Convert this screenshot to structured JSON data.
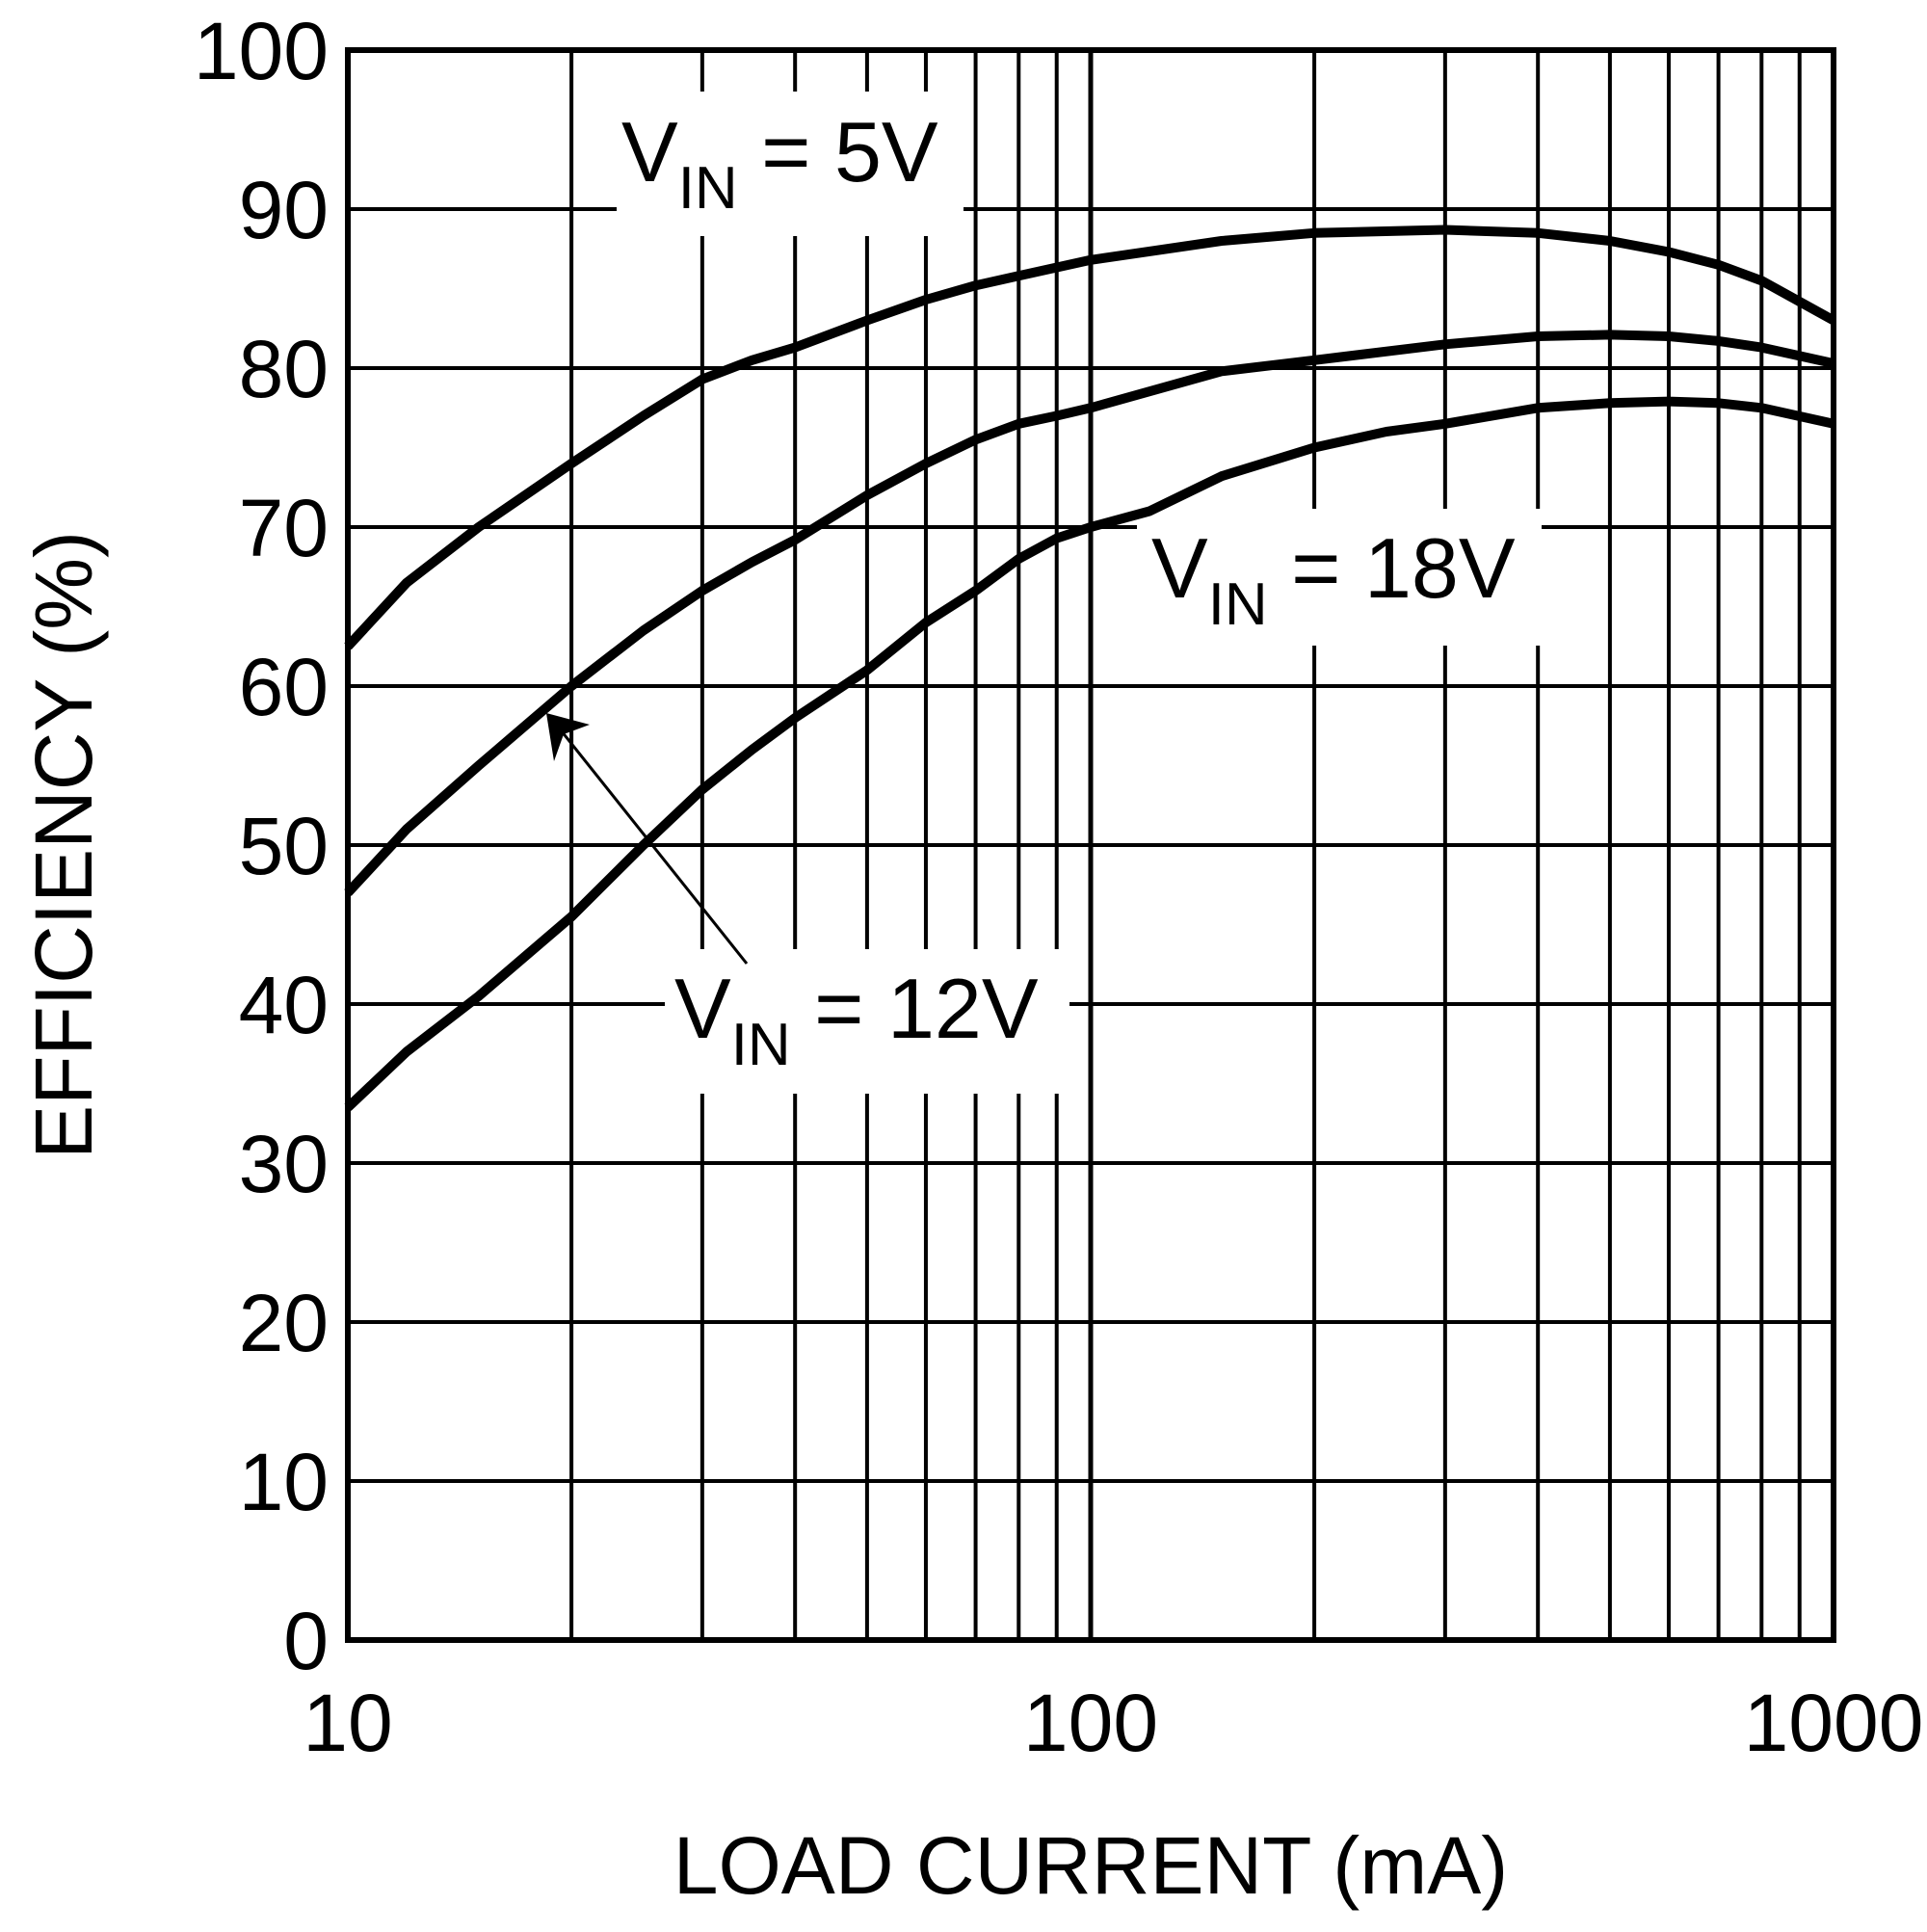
{
  "chart_data": {
    "type": "line",
    "xlabel": "LOAD CURRENT (mA)",
    "ylabel": "EFFICIENCY (%)",
    "x_scale": "log",
    "xlim": [
      10,
      1000
    ],
    "ylim": [
      0,
      100
    ],
    "grid": true,
    "x_ticks": [
      "10",
      "100",
      "1000"
    ],
    "y_ticks": [
      "0",
      "10",
      "20",
      "30",
      "40",
      "50",
      "60",
      "70",
      "80",
      "90",
      "100"
    ],
    "series": [
      {
        "name": "VIN = 5V",
        "label_main": "V",
        "label_sub": "IN",
        "label_rest": " = 5V",
        "color": "#000000",
        "x": [
          10,
          12,
          15,
          20,
          25,
          30,
          35,
          40,
          50,
          60,
          70,
          80,
          100,
          150,
          200,
          300,
          400,
          500,
          600,
          700,
          800,
          1000
        ],
        "y": [
          62.5,
          66.5,
          70,
          74,
          77,
          79.3,
          80.5,
          81.3,
          83,
          84.3,
          85.2,
          85.8,
          86.8,
          88,
          88.5,
          88.7,
          88.5,
          88,
          87.3,
          86.5,
          85.5,
          83
        ]
      },
      {
        "name": "VIN = 12V",
        "label_main": "V",
        "label_sub": "IN",
        "label_rest": " = 12V",
        "color": "#000000",
        "x": [
          10,
          12,
          15,
          20,
          25,
          30,
          35,
          40,
          50,
          60,
          70,
          80,
          90,
          100,
          150,
          200,
          300,
          400,
          500,
          600,
          700,
          800,
          1000
        ],
        "y": [
          47,
          51,
          55,
          60,
          63.5,
          66,
          67.8,
          69.2,
          72,
          74,
          75.5,
          76.5,
          77,
          77.5,
          79.8,
          80.5,
          81.5,
          82,
          82.1,
          82,
          81.7,
          81.3,
          80.3
        ]
      },
      {
        "name": "VIN = 18V",
        "label_main": "V",
        "label_sub": "IN",
        "label_rest": " = 18V",
        "color": "#000000",
        "x": [
          10,
          12,
          15,
          20,
          25,
          30,
          35,
          40,
          50,
          60,
          70,
          80,
          90,
          100,
          120,
          150,
          200,
          250,
          300,
          400,
          500,
          600,
          700,
          800,
          1000
        ],
        "y": [
          33.5,
          37,
          40.5,
          45.5,
          50,
          53.5,
          56,
          58,
          61,
          64,
          66,
          68,
          69.3,
          70,
          71,
          73.2,
          75,
          76,
          76.5,
          77.5,
          77.8,
          77.9,
          77.8,
          77.5,
          76.5
        ]
      }
    ]
  }
}
